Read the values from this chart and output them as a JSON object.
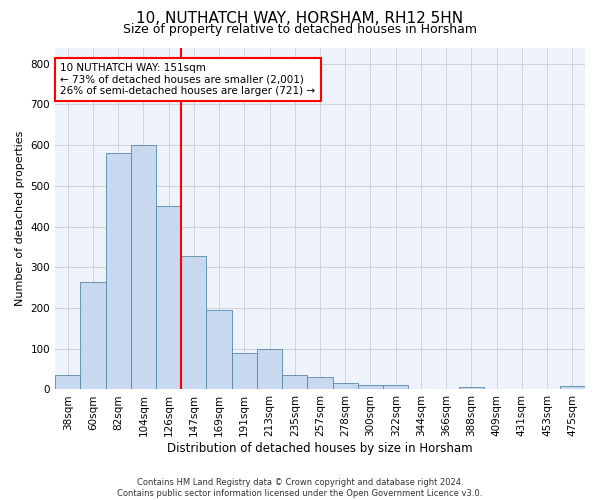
{
  "title1": "10, NUTHATCH WAY, HORSHAM, RH12 5HN",
  "title2": "Size of property relative to detached houses in Horsham",
  "xlabel": "Distribution of detached houses by size in Horsham",
  "ylabel": "Number of detached properties",
  "categories": [
    "38sqm",
    "60sqm",
    "82sqm",
    "104sqm",
    "126sqm",
    "147sqm",
    "169sqm",
    "191sqm",
    "213sqm",
    "235sqm",
    "257sqm",
    "278sqm",
    "300sqm",
    "322sqm",
    "344sqm",
    "366sqm",
    "388sqm",
    "409sqm",
    "431sqm",
    "453sqm",
    "475sqm"
  ],
  "values": [
    35,
    265,
    580,
    600,
    450,
    328,
    195,
    90,
    100,
    35,
    30,
    16,
    12,
    10,
    0,
    0,
    5,
    0,
    0,
    0,
    8
  ],
  "bar_color": "#c8d8ee",
  "bar_edge_color": "#5588aa",
  "vline_index": 5,
  "vline_color": "red",
  "annotation_text": "10 NUTHATCH WAY: 151sqm\n← 73% of detached houses are smaller (2,001)\n26% of semi-detached houses are larger (721) →",
  "annotation_box_color": "white",
  "annotation_box_edge_color": "red",
  "ylim": [
    0,
    840
  ],
  "yticks": [
    0,
    100,
    200,
    300,
    400,
    500,
    600,
    700,
    800
  ],
  "grid_color": "#cccccc",
  "background_color": "#eef2fa",
  "footnote": "Contains HM Land Registry data © Crown copyright and database right 2024.\nContains public sector information licensed under the Open Government Licence v3.0.",
  "title1_fontsize": 11,
  "title2_fontsize": 9,
  "xlabel_fontsize": 8.5,
  "ylabel_fontsize": 8,
  "tick_fontsize": 7.5,
  "annotation_fontsize": 7.5,
  "footnote_fontsize": 6
}
